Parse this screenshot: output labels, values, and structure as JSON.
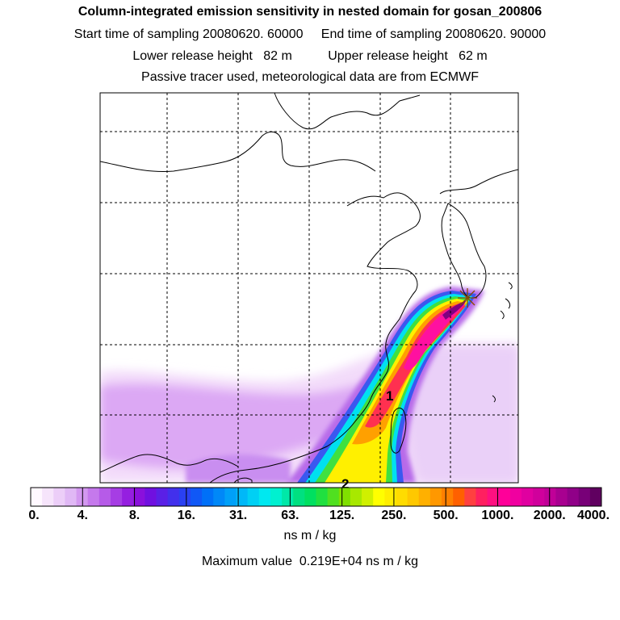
{
  "header": {
    "title": "Column-integrated emission sensitivity in nested domain for gosan_200806",
    "line2": "Start time of sampling 20080620. 60000     End time of sampling 20080620. 90000",
    "line3": "Lower release height   82 m          Upper release height   62 m",
    "line4": "Passive tracer used, meteorological data are from ECMWF"
  },
  "map": {
    "plume_labels": [
      "1",
      "2"
    ],
    "release_marker": "star",
    "grid": "dashed"
  },
  "colorbar": {
    "tick_labels": [
      "0.",
      "4.",
      "8.",
      "16.",
      "31.",
      "63.",
      "125.",
      "250.",
      "500.",
      "1000.",
      "2000.",
      "4000."
    ],
    "colors": [
      "#fff8ff",
      "#f6e4fb",
      "#eccef8",
      "#e0b8f5",
      "#d398f0",
      "#c579ec",
      "#b65be8",
      "#a63de4",
      "#951fe0",
      "#8a10dc",
      "#7010e0",
      "#5a20e6",
      "#4230ec",
      "#2a40f2",
      "#1058f6",
      "#0070f8",
      "#0088f8",
      "#00a0f8",
      "#00b8f8",
      "#00d0f4",
      "#00e8f0",
      "#00f0d0",
      "#00e8a8",
      "#00e080",
      "#00e060",
      "#20e040",
      "#50e020",
      "#80e000",
      "#a8e800",
      "#d0f000",
      "#ffff00",
      "#ffee00",
      "#ffdc00",
      "#ffc800",
      "#ffb000",
      "#ff9800",
      "#ff8000",
      "#ff6000",
      "#ff4040",
      "#ff2060",
      "#ff1080",
      "#ff0099",
      "#f000a0",
      "#e000a0",
      "#d0009c",
      "#c00098",
      "#a80090",
      "#900088",
      "#780078",
      "#600060"
    ],
    "units": "ns m / kg",
    "max_label": "Maximum value  0.219E+04 ns m / kg"
  },
  "colors": {
    "grid": "#000000",
    "coast": "#000000"
  }
}
